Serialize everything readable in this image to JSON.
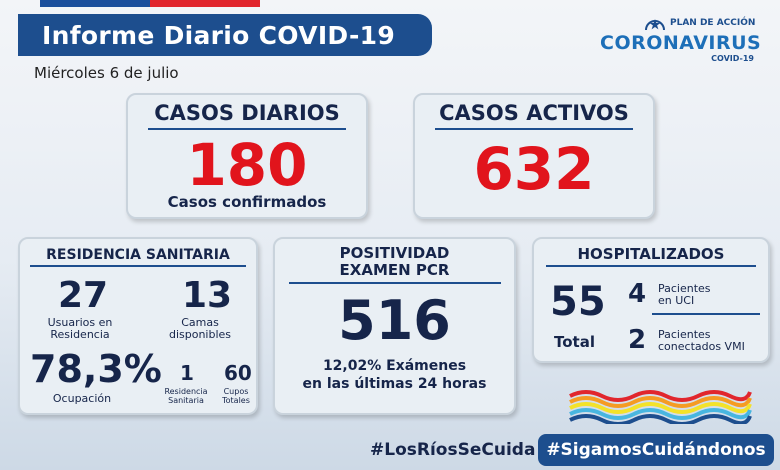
{
  "header": {
    "title": "Informe Diario COVID-19",
    "date": "Miércoles 6 de julio"
  },
  "logo": {
    "plan": "PLAN DE ACCIÓN",
    "name": "CORONAVIRUS",
    "sub": "COVID-19"
  },
  "daily_cases": {
    "title": "CASOS DIARIOS",
    "value": "180",
    "caption": "Casos confirmados"
  },
  "active_cases": {
    "title": "CASOS ACTIVOS",
    "value": "632"
  },
  "residence": {
    "title": "RESIDENCIA SANITARIA",
    "users_value": "27",
    "users_label_1": "Usuarios en",
    "users_label_2": "Residencia",
    "beds_value": "13",
    "beds_label_1": "Camas",
    "beds_label_2": "disponibles",
    "occupancy_value": "78,3%",
    "occupancy_label": "Ocupación",
    "res_value": "1",
    "res_label_1": "Residencia",
    "res_label_2": "Sanitaria",
    "total_value": "60",
    "total_label_1": "Cupos",
    "total_label_2": "Totales"
  },
  "pcr": {
    "title_1": "POSITIVIDAD",
    "title_2": "EXAMEN PCR",
    "value": "516",
    "caption_1": "12,02% Exámenes",
    "caption_2": "en las últimas 24 horas"
  },
  "hospital": {
    "title": "HOSPITALIZADOS",
    "total_value": "55",
    "total_label": "Total",
    "uci_value": "4",
    "uci_label_1": "Pacientes",
    "uci_label_2": "en UCI",
    "vmi_value": "2",
    "vmi_label_1": "Pacientes",
    "vmi_label_2": "conectados VMI"
  },
  "footer": {
    "hashtag_left": "#LosRíosSeCuida",
    "hashtag_right": "#SigamosCuidándonos"
  },
  "colors": {
    "navy": "#1d4e8e",
    "red": "#e1141c",
    "dark_text": "#16254a"
  }
}
